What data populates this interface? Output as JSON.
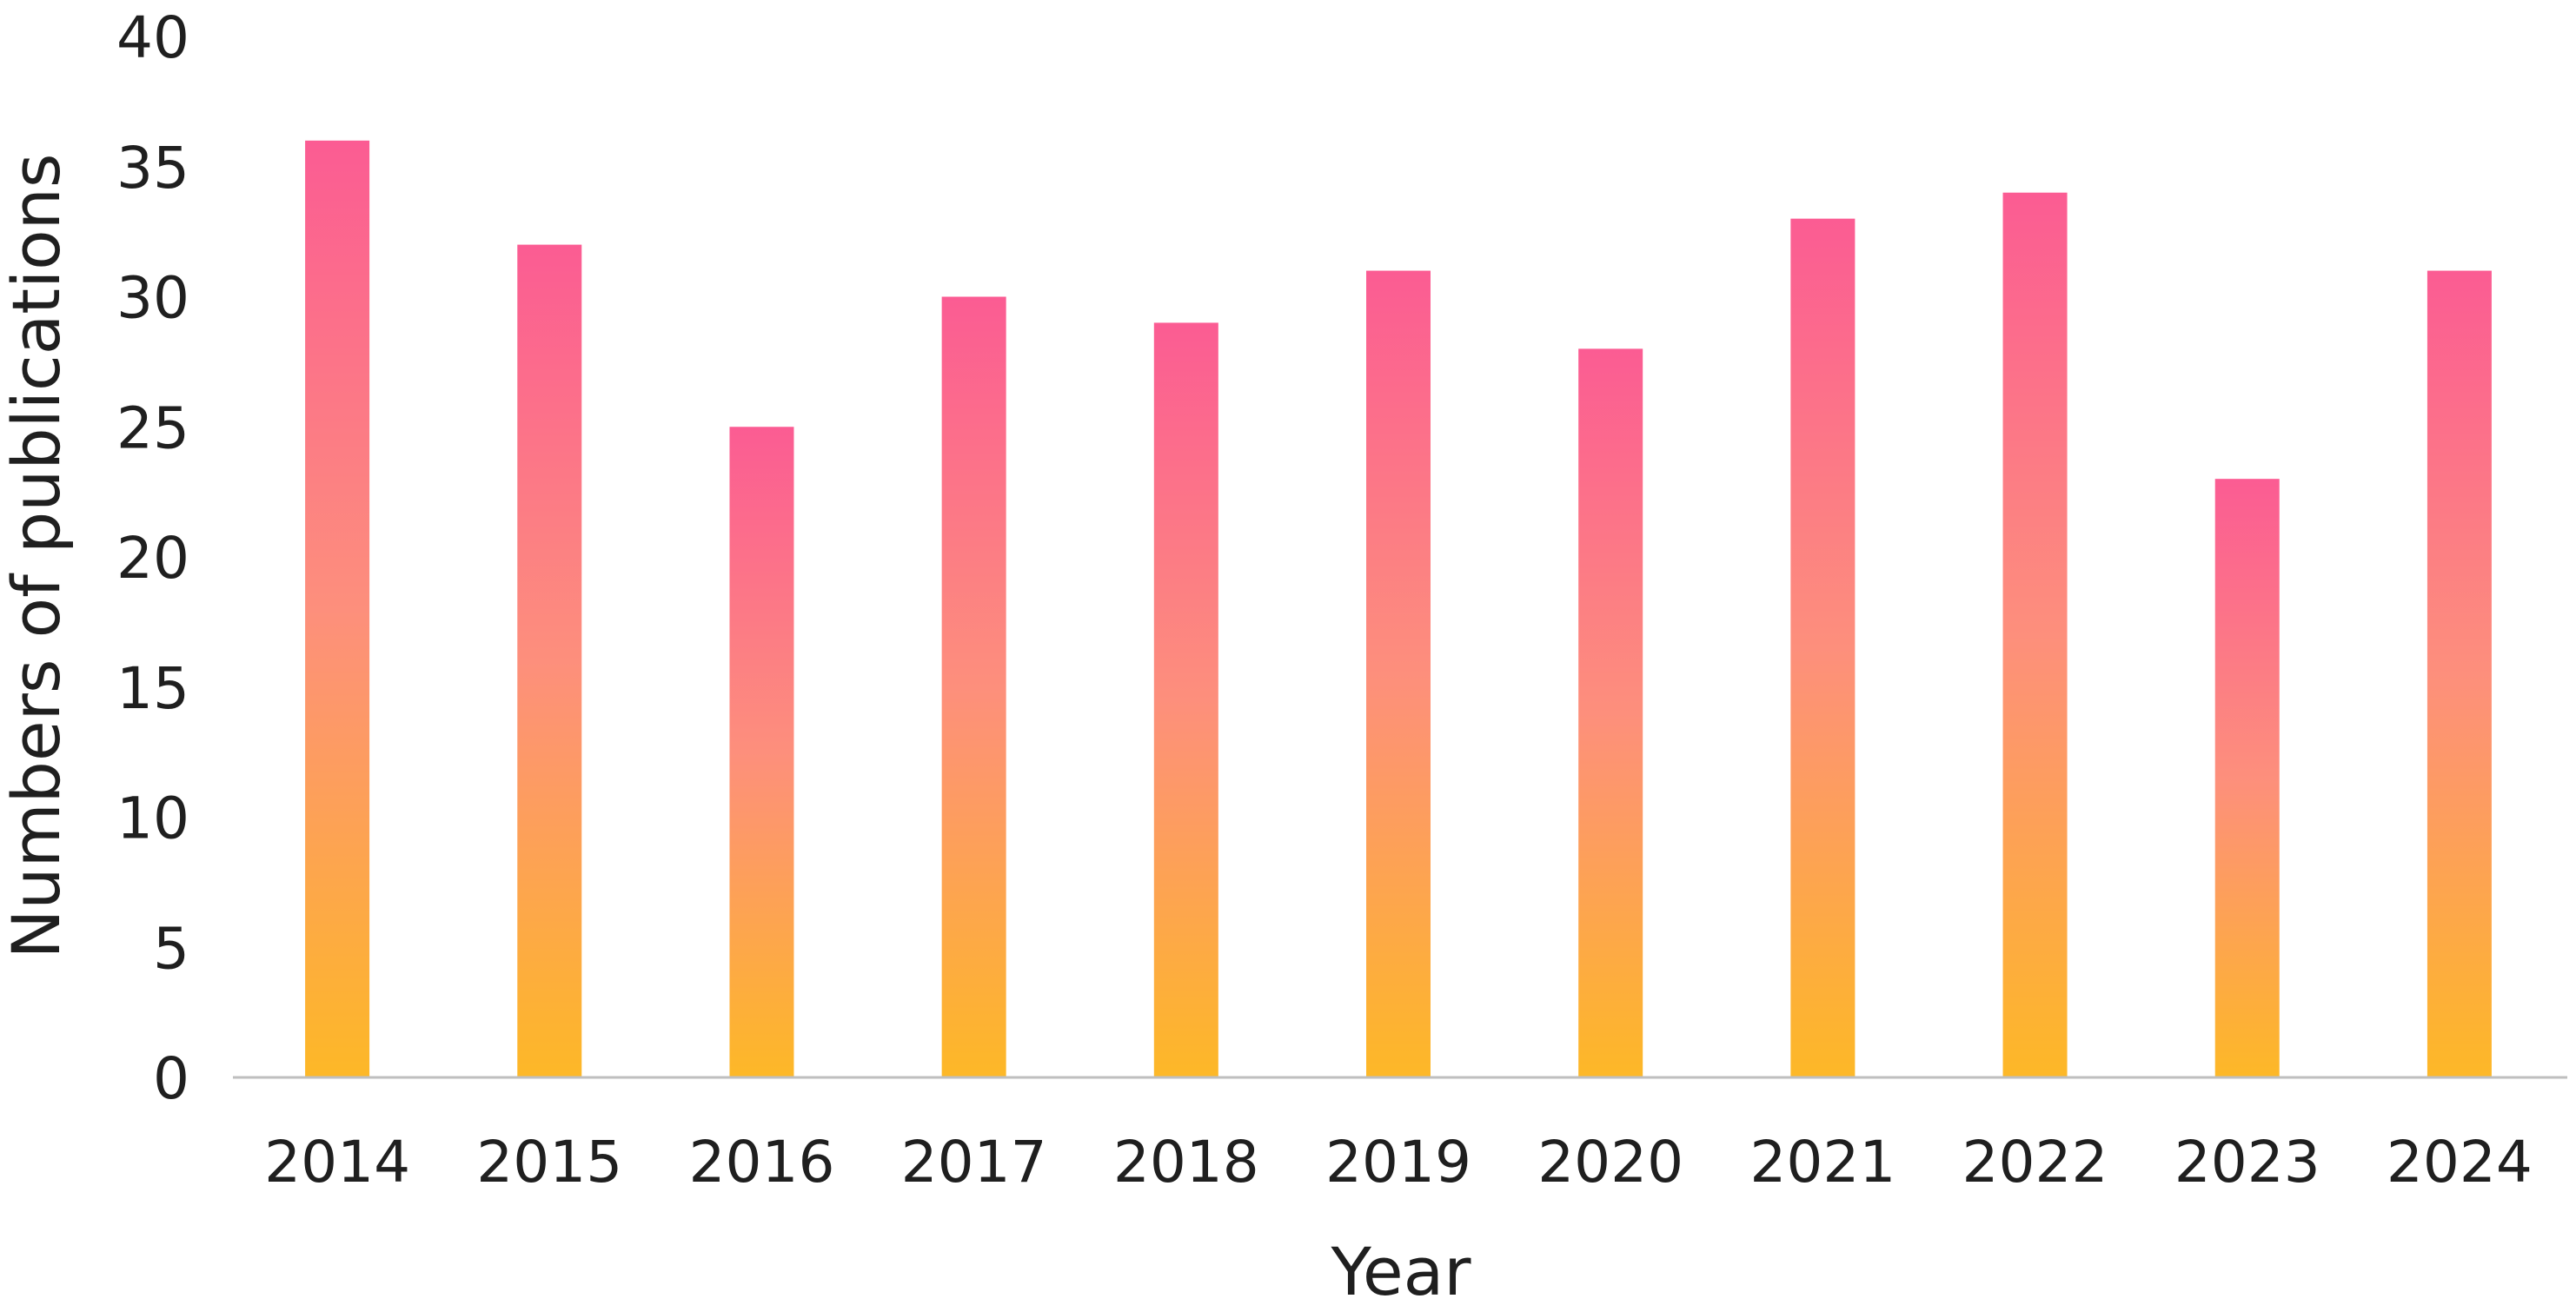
{
  "chart_data": {
    "type": "bar",
    "title": "",
    "xlabel": "Year",
    "ylabel": "Numbers of publications",
    "categories": [
      "2014",
      "2015",
      "2016",
      "2017",
      "2018",
      "2019",
      "2020",
      "2021",
      "2022",
      "2023",
      "2024"
    ],
    "values": [
      36,
      32,
      25,
      30,
      29,
      31,
      28,
      33,
      34,
      23,
      31
    ],
    "ylim": [
      0,
      40
    ],
    "yticks": [
      "0",
      "5",
      "10",
      "15",
      "20",
      "25",
      "30",
      "35",
      "40"
    ],
    "grid": false,
    "legend": "none",
    "bar_gradient": {
      "top": "#fb5c93",
      "middle": "#fd8f7c",
      "bottom": "#fdb827"
    },
    "axis_color": "#bfbfbf"
  }
}
